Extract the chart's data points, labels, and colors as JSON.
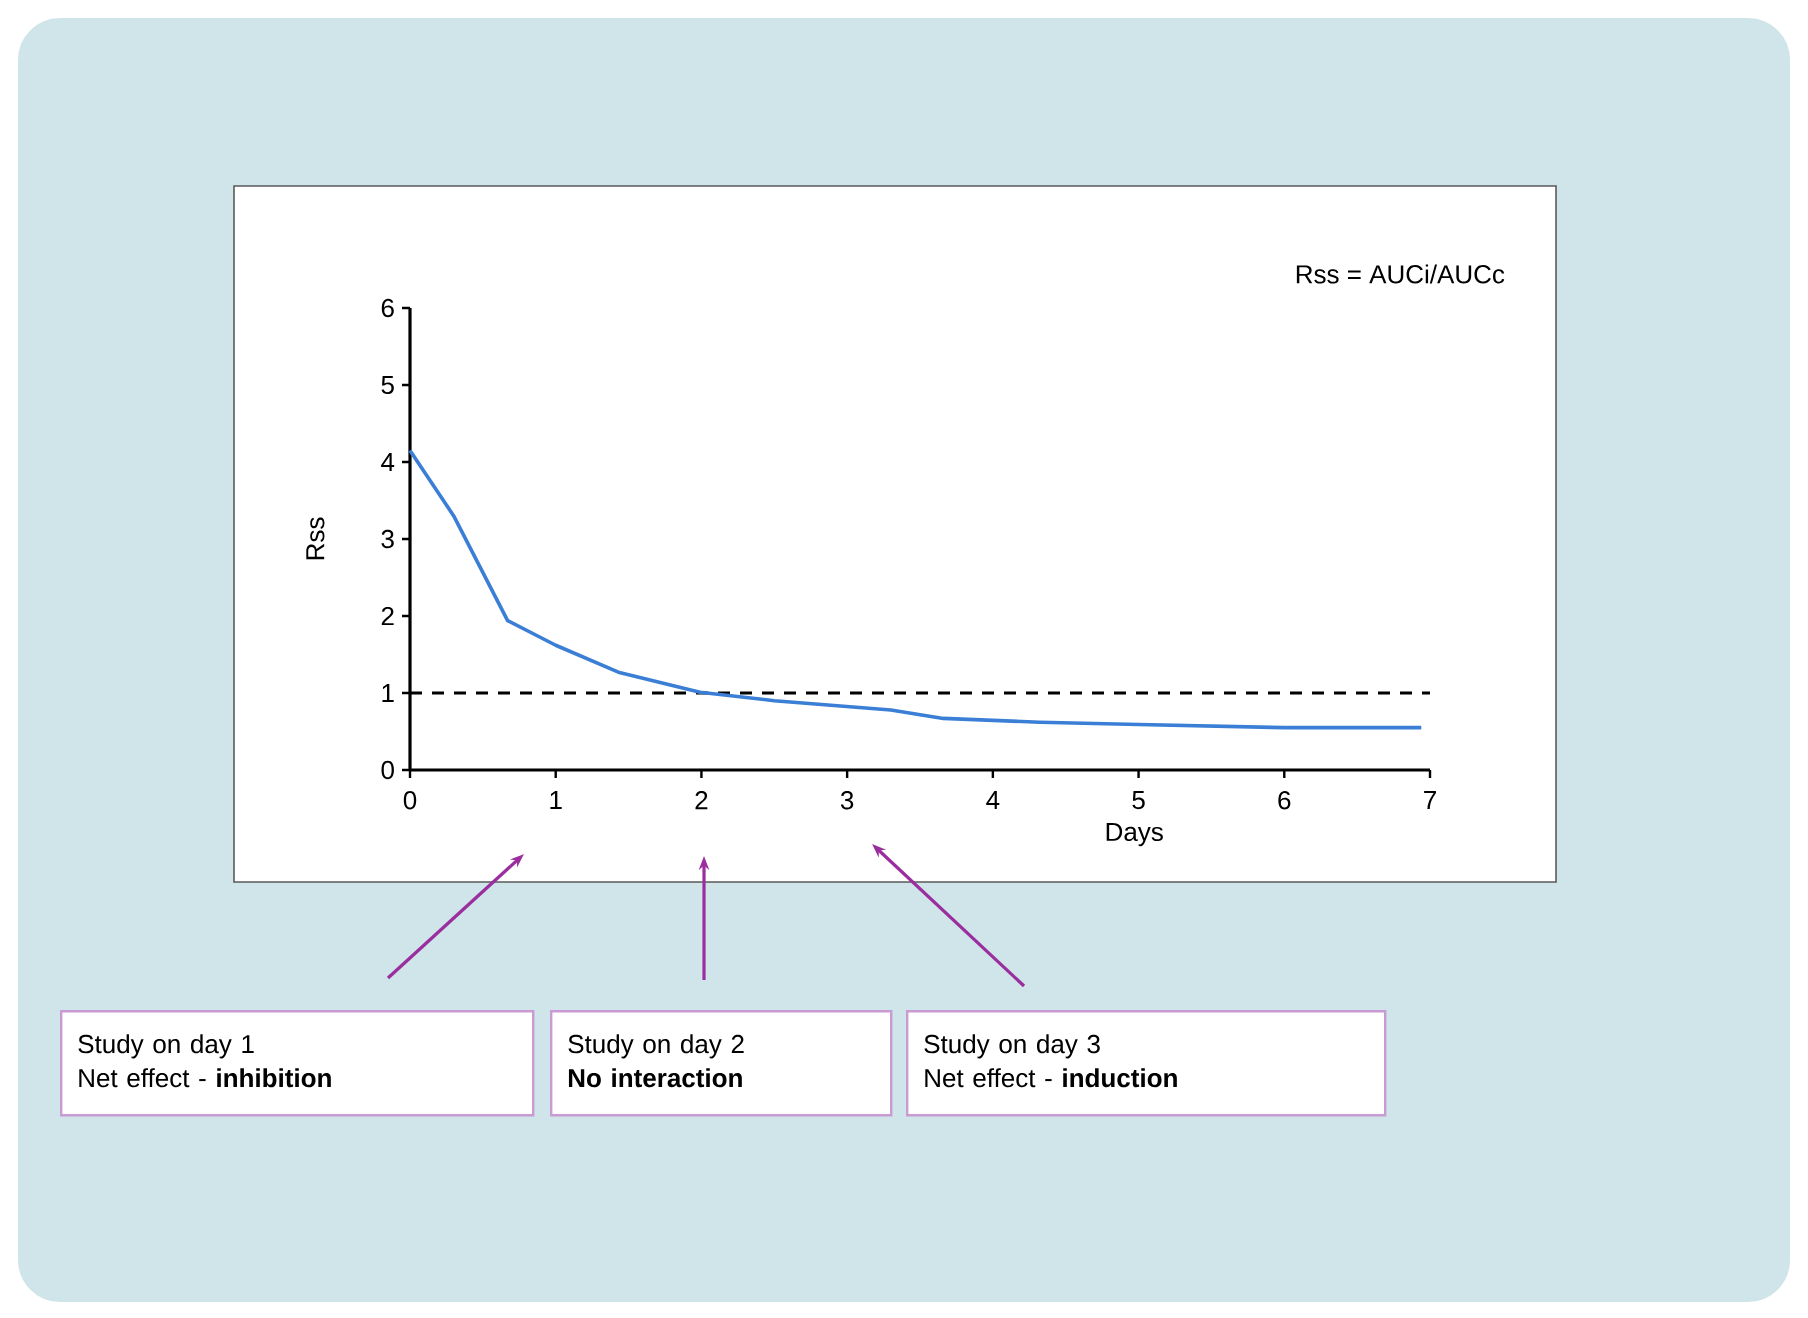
{
  "chart_data": {
    "type": "line",
    "xlabel": "Days",
    "ylabel": "Rss",
    "x": [
      0,
      0.3,
      0.67,
      1.0,
      1.43,
      1.99,
      2.5,
      2.9,
      3.3,
      3.66,
      4.32,
      5.0,
      6.0,
      6.94
    ],
    "series": [
      {
        "color": "#3a7fd5",
        "values": [
          4.15,
          3.3,
          1.94,
          1.62,
          1.27,
          1.01,
          0.9,
          0.84,
          0.78,
          0.67,
          0.62,
          0.59,
          0.55,
          0.55
        ]
      }
    ],
    "xlim": [
      0,
      7
    ],
    "ylim": [
      0,
      6
    ],
    "xticks": [
      0,
      1,
      2,
      3,
      4,
      5,
      6,
      7
    ],
    "yticks": [
      0,
      1,
      2,
      3,
      4,
      5,
      6
    ],
    "ref_lines": [
      {
        "axis": "y",
        "value": 1,
        "color": "#000000",
        "line_style": "dashed"
      }
    ],
    "annotations": [
      "Rss = AUCi/AUCc",
      "Study on day 1",
      "Net effect - **inhibition**",
      "Study on day 2",
      "**No interaction**",
      "Study on day 3",
      "Net effect - **induction**"
    ]
  }
}
